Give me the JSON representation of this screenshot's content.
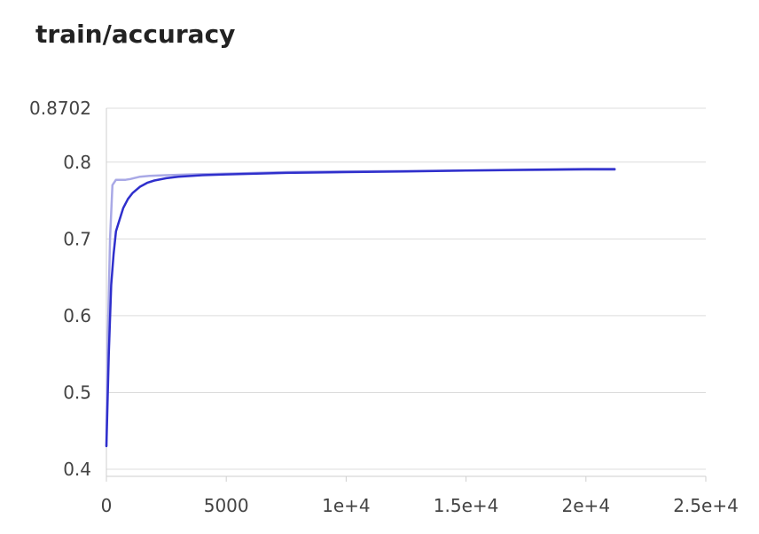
{
  "chart_data": {
    "type": "line",
    "title": "train/accuracy",
    "xlabel": "",
    "ylabel": "",
    "xlim": [
      0,
      25000
    ],
    "ylim": [
      0.4,
      0.8702
    ],
    "x_ticks": [
      {
        "value": 0,
        "label": "0"
      },
      {
        "value": 5000,
        "label": "5000"
      },
      {
        "value": 10000,
        "label": "1e+4"
      },
      {
        "value": 15000,
        "label": "1.5e+4"
      },
      {
        "value": 20000,
        "label": "2e+4"
      },
      {
        "value": 25000,
        "label": "2.5e+4"
      }
    ],
    "y_ticks": [
      {
        "value": 0.4,
        "label": "0.4"
      },
      {
        "value": 0.5,
        "label": "0.5"
      },
      {
        "value": 0.6,
        "label": "0.6"
      },
      {
        "value": 0.7,
        "label": "0.7"
      },
      {
        "value": 0.8,
        "label": "0.8"
      },
      {
        "value": 0.8702,
        "label": "0.8702"
      }
    ],
    "grid": true,
    "legend": "none",
    "series": [
      {
        "role": "raw",
        "color": "#a9a9e6",
        "x": [
          0,
          50,
          150,
          250,
          400,
          600,
          800,
          1000,
          1400,
          1800,
          2500,
          3500,
          5000,
          7500,
          10000,
          15000,
          20000,
          21200
        ],
        "y": [
          0.43,
          0.56,
          0.7,
          0.77,
          0.777,
          0.777,
          0.777,
          0.778,
          0.781,
          0.782,
          0.783,
          0.784,
          0.785,
          0.787,
          0.788,
          0.789,
          0.79,
          0.79
        ]
      },
      {
        "role": "smoothed",
        "color": "#2f2fcc",
        "x": [
          0,
          100,
          200,
          300,
          400,
          500,
          700,
          900,
          1100,
          1400,
          1700,
          2000,
          2500,
          3000,
          4000,
          5000,
          7500,
          10000,
          12500,
          15000,
          17500,
          20000,
          21200
        ],
        "y": [
          0.43,
          0.55,
          0.64,
          0.68,
          0.71,
          0.72,
          0.74,
          0.752,
          0.76,
          0.768,
          0.773,
          0.776,
          0.779,
          0.781,
          0.783,
          0.784,
          0.786,
          0.787,
          0.788,
          0.789,
          0.79,
          0.791,
          0.791
        ]
      }
    ]
  }
}
